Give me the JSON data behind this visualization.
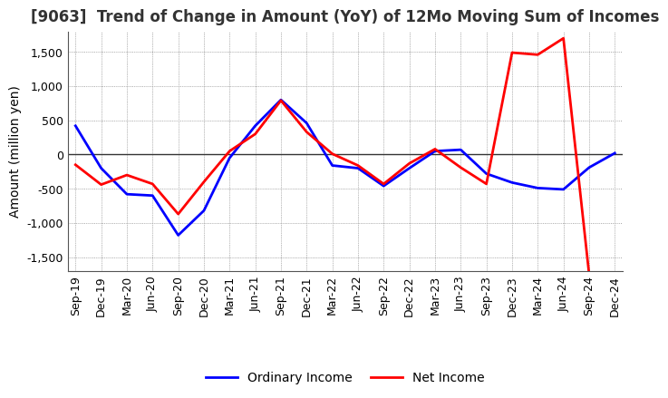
{
  "title": "[9063]  Trend of Change in Amount (YoY) of 12Mo Moving Sum of Incomes",
  "ylabel": "Amount (million yen)",
  "x_labels": [
    "Sep-19",
    "Dec-19",
    "Mar-20",
    "Jun-20",
    "Sep-20",
    "Dec-20",
    "Mar-21",
    "Jun-21",
    "Sep-21",
    "Dec-21",
    "Mar-22",
    "Jun-22",
    "Sep-22",
    "Dec-22",
    "Mar-23",
    "Jun-23",
    "Sep-23",
    "Dec-23",
    "Mar-24",
    "Jun-24",
    "Sep-24",
    "Dec-24"
  ],
  "ordinary_income": [
    420,
    -200,
    -580,
    -600,
    -1180,
    -820,
    -50,
    420,
    800,
    460,
    -160,
    -200,
    -460,
    -200,
    50,
    70,
    -280,
    -410,
    -490,
    -510,
    -190,
    20
  ],
  "net_income": [
    -150,
    -440,
    -300,
    -430,
    -870,
    -400,
    50,
    300,
    790,
    330,
    10,
    -160,
    -430,
    -130,
    80,
    -190,
    -430,
    1490,
    1460,
    1700,
    -1750,
    null
  ],
  "ordinary_income_color": "#0000ff",
  "net_income_color": "#ff0000",
  "ylim_min": -1700,
  "ylim_max": 1800,
  "yticks": [
    -1500,
    -1000,
    -500,
    0,
    500,
    1000,
    1500
  ],
  "background_color": "#ffffff",
  "grid_color": "#888888",
  "legend_ordinary": "Ordinary Income",
  "legend_net": "Net Income",
  "title_fontsize": 12,
  "axis_fontsize": 10,
  "tick_fontsize": 9
}
